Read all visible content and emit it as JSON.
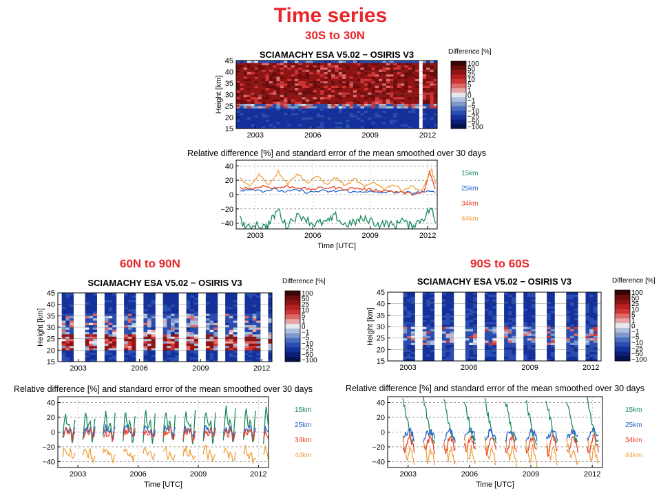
{
  "page": {
    "title": "Time series",
    "regions": {
      "tropics": "30S to 30N",
      "north": "60N to 90N",
      "south": "90S to 60S"
    }
  },
  "colors": {
    "title": "#e8262a",
    "series": {
      "15km": "#1a8a5a",
      "25km": "#2563c9",
      "34km": "#e8432a",
      "44km": "#f0a040"
    }
  },
  "colorbar": {
    "title": "Difference [%]",
    "ticks": [
      "100",
      "50",
      "25",
      "10",
      "5",
      "1",
      "0",
      "−1",
      "−5",
      "−10",
      "−25",
      "−50",
      "−100"
    ],
    "colors": [
      "#3a0505",
      "#6b0d0d",
      "#8f1414",
      "#b52020",
      "#cf3535",
      "#dd6a6a",
      "#e6a5a5",
      "#e7e7ee",
      "#b0bfdc",
      "#7e98cc",
      "#4a6ec0",
      "#2a4db0",
      "#14309a",
      "#0b1f78",
      "#06124a"
    ]
  },
  "chart_data": [
    {
      "id": "tropics-heatmap",
      "type": "heatmap",
      "title": "SCIAMACHY ESA V5.02 − OSIRIS V3",
      "ylabel": "Height [km]",
      "y_ticks": [
        "45",
        "40",
        "35",
        "30",
        "25",
        "20",
        "15"
      ],
      "x_ticks": [
        "2003",
        "2006",
        "2009",
        "2012"
      ],
      "xlim": [
        2002.0,
        2012.5
      ],
      "ylim": [
        15,
        45
      ],
      "layers": [
        {
          "from": 15,
          "to": 24,
          "level": -35
        },
        {
          "from": 24,
          "to": 26,
          "level": -5
        },
        {
          "from": 26,
          "to": 44,
          "level": 18
        },
        {
          "from": 44,
          "to": 45,
          "level": -15
        }
      ],
      "gaps": [
        2011.55
      ]
    },
    {
      "id": "tropics-lines",
      "type": "line",
      "title": "Relative difference [%] and standard error of the mean smoothed over 30 days",
      "xlabel": "Time [UTC]",
      "x_ticks": [
        "2003",
        "2006",
        "2009",
        "2012"
      ],
      "y_ticks": [
        "40",
        "20",
        "0",
        "−20",
        "−40"
      ],
      "xlim": [
        2002.0,
        2012.5
      ],
      "ylim": [
        -48,
        48
      ],
      "series": [
        {
          "name": "15km",
          "x": [
            2002.2,
            2002.6,
            2003.0,
            2003.5,
            2003.8,
            2004.2,
            2004.6,
            2005.0,
            2005.5,
            2006.0,
            2006.3,
            2006.8,
            2007.2,
            2007.6,
            2008.1,
            2008.5,
            2009.0,
            2009.4,
            2009.9,
            2010.3,
            2010.6,
            2011.0,
            2011.4,
            2011.8,
            2012.2,
            2012.4
          ],
          "values": [
            -35,
            -48,
            -40,
            -46,
            -38,
            -20,
            -45,
            -32,
            -30,
            -41,
            -40,
            -38,
            -30,
            -42,
            -40,
            -35,
            -35,
            -42,
            -40,
            -45,
            -33,
            -44,
            -40,
            -32,
            -18,
            -40
          ]
        },
        {
          "name": "25km",
          "x": [
            2002.2,
            2002.8,
            2003.4,
            2004.0,
            2004.6,
            2005.2,
            2005.8,
            2006.4,
            2007.0,
            2007.6,
            2008.2,
            2008.8,
            2009.4,
            2010.0,
            2010.6,
            2011.2,
            2011.8,
            2012.4
          ],
          "values": [
            6,
            8,
            5,
            7,
            4,
            6,
            3,
            5,
            4,
            6,
            3,
            5,
            2,
            4,
            3,
            2,
            4,
            3
          ]
        },
        {
          "name": "34km",
          "x": [
            2002.2,
            2002.8,
            2003.4,
            2004.0,
            2004.6,
            2005.2,
            2005.8,
            2006.4,
            2007.0,
            2007.6,
            2008.2,
            2008.8,
            2009.4,
            2010.0,
            2010.6,
            2011.2,
            2011.8,
            2012.1,
            2012.4
          ],
          "values": [
            10,
            8,
            12,
            9,
            11,
            10,
            7,
            9,
            10,
            8,
            9,
            7,
            6,
            5,
            3,
            1,
            2,
            32,
            8
          ]
        },
        {
          "name": "44km",
          "x": [
            2002.2,
            2002.7,
            2003.2,
            2003.7,
            2004.2,
            2004.7,
            2005.2,
            2005.7,
            2006.2,
            2006.7,
            2007.2,
            2007.7,
            2008.2,
            2008.7,
            2009.2,
            2009.7,
            2010.2,
            2010.7,
            2011.2,
            2011.7,
            2012.2,
            2012.4
          ],
          "values": [
            22,
            12,
            28,
            14,
            32,
            15,
            30,
            16,
            26,
            14,
            24,
            12,
            22,
            10,
            18,
            8,
            14,
            6,
            12,
            4,
            36,
            15
          ]
        }
      ]
    },
    {
      "id": "north-heatmap",
      "type": "heatmap",
      "title": "SCIAMACHY ESA V5.02 − OSIRIS V3",
      "ylabel": "Height [km]",
      "y_ticks": [
        "45",
        "40",
        "35",
        "30",
        "25",
        "20",
        "15"
      ],
      "x_ticks": [
        "2003",
        "2006",
        "2009",
        "2012"
      ],
      "xlim": [
        2002.0,
        2012.5
      ],
      "ylim": [
        15,
        45
      ],
      "seasons": [
        2002.25,
        2003.25,
        2004.25,
        2005.25,
        2006.25,
        2007.25,
        2008.25,
        2009.25,
        2010.25,
        2011.25,
        2012.25
      ],
      "season_length": 0.6,
      "layers": [
        {
          "from": 15,
          "to": 20,
          "level": -30
        },
        {
          "from": 20,
          "to": 27,
          "level": 8
        },
        {
          "from": 27,
          "to": 36,
          "level": -12
        },
        {
          "from": 36,
          "to": 45,
          "level": -35
        }
      ]
    },
    {
      "id": "north-lines",
      "type": "line",
      "title": "Relative difference [%] and standard error of the mean smoothed over 30 days",
      "xlabel": "Time [UTC]",
      "x_ticks": [
        "2003",
        "2006",
        "2009",
        "2012"
      ],
      "y_ticks": [
        "40",
        "20",
        "0",
        "−20",
        "−40"
      ],
      "xlim": [
        2002.0,
        2012.5
      ],
      "ylim": [
        -48,
        48
      ],
      "seasons": [
        2002.25,
        2003.25,
        2004.25,
        2005.25,
        2006.25,
        2007.25,
        2008.25,
        2009.25,
        2010.25,
        2011.25,
        2012.25
      ],
      "season_length": 0.6,
      "series": [
        {
          "name": "15km",
          "profile": [
            -8,
            25,
            5,
            12,
            -15,
            20
          ],
          "amp_growth": 0.6
        },
        {
          "name": "25km",
          "profile": [
            -3,
            8,
            2,
            5,
            -8,
            3
          ],
          "amp_growth": 0.0
        },
        {
          "name": "34km",
          "profile": [
            -6,
            2,
            -4,
            4,
            -10,
            0
          ],
          "amp_growth": 0.0
        },
        {
          "name": "44km",
          "profile": [
            -30,
            -20,
            -35,
            -25,
            -40,
            -30
          ],
          "amp_growth": 0.0
        }
      ]
    },
    {
      "id": "south-heatmap",
      "type": "heatmap",
      "title": "SCIAMACHY ESA V5.02 − OSIRIS V3",
      "ylabel": "Height [km]",
      "y_ticks": [
        "45",
        "40",
        "35",
        "30",
        "25",
        "20",
        "15"
      ],
      "x_ticks": [
        "2003",
        "2006",
        "2009",
        "2012"
      ],
      "xlim": [
        2002.0,
        2012.5
      ],
      "ylim": [
        15,
        45
      ],
      "seasons": [
        2002.75,
        2003.75,
        2004.75,
        2005.75,
        2006.75,
        2007.75,
        2008.75,
        2009.75,
        2010.75,
        2011.75
      ],
      "season_length": 0.55,
      "layers": [
        {
          "from": 15,
          "to": 22,
          "level": -25
        },
        {
          "from": 22,
          "to": 30,
          "level": -8
        },
        {
          "from": 30,
          "to": 45,
          "level": -30
        }
      ]
    },
    {
      "id": "south-lines",
      "type": "line",
      "title": "Relative difference [%] and standard error of the mean smoothed over 30 days",
      "xlabel": "Time [UTC]",
      "x_ticks": [
        "2003",
        "2006",
        "2009",
        "2012"
      ],
      "y_ticks": [
        "40",
        "20",
        "0",
        "−20",
        "−40"
      ],
      "xlim": [
        2002.0,
        2012.5
      ],
      "ylim": [
        -48,
        48
      ],
      "seasons": [
        2002.75,
        2003.75,
        2004.75,
        2005.75,
        2006.75,
        2007.75,
        2008.75,
        2009.75,
        2010.75,
        2011.75
      ],
      "season_length": 0.55,
      "series": [
        {
          "name": "15km",
          "profile": [
            45,
            30,
            15,
            0,
            -10,
            -15
          ],
          "amp_growth": 0.0
        },
        {
          "name": "25km",
          "profile": [
            -10,
            -5,
            0,
            2,
            -3,
            -8
          ],
          "amp_growth": 0.0
        },
        {
          "name": "34km",
          "profile": [
            -20,
            -30,
            -12,
            -5,
            -15,
            -25
          ],
          "amp_growth": 0.0
        },
        {
          "name": "44km",
          "profile": [
            -10,
            -25,
            -40,
            -20,
            -30,
            -45
          ],
          "amp_growth": 0.0
        }
      ]
    }
  ]
}
